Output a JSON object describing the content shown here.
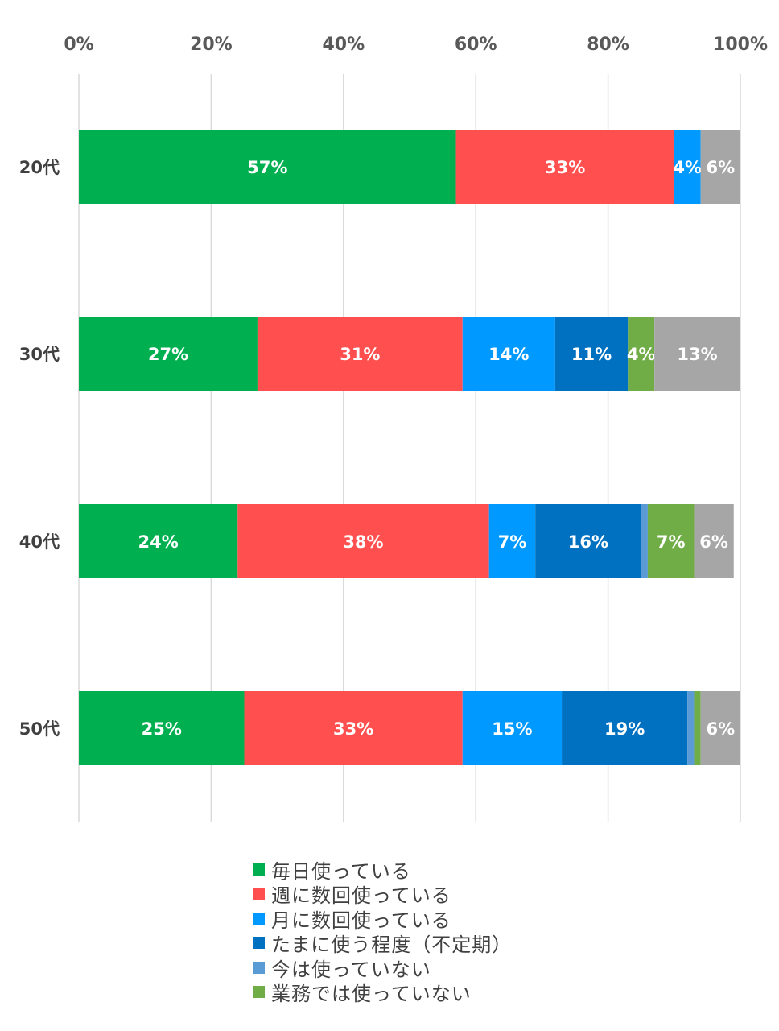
{
  "chart_data": {
    "type": "bar",
    "orientation": "horizontal",
    "stacked": true,
    "categories": [
      "20代",
      "30代",
      "40代",
      "50代"
    ],
    "x_ticks": [
      "0%",
      "20%",
      "40%",
      "60%",
      "80%",
      "100%"
    ],
    "xlim": [
      0,
      100
    ],
    "grid": true,
    "legend_position": "bottom",
    "series": [
      {
        "name": "毎日使っている",
        "color": "#00B050",
        "values": [
          57,
          27,
          24,
          25
        ],
        "labels": [
          "57%",
          "27%",
          "24%",
          "25%"
        ]
      },
      {
        "name": "週に数回使っている",
        "color": "#FF4F4F",
        "values": [
          33,
          31,
          38,
          33
        ],
        "labels": [
          "33%",
          "31%",
          "38%",
          "33%"
        ]
      },
      {
        "name": "月に数回使っている",
        "color": "#0099FF",
        "values": [
          4,
          14,
          7,
          15
        ],
        "labels": [
          "4%",
          "14%",
          "7%",
          "15%"
        ]
      },
      {
        "name": "たまに使う程度（不定期）",
        "color": "#0070C0",
        "values": [
          0,
          11,
          16,
          19
        ],
        "labels": [
          "",
          "11%",
          "16%",
          "19%"
        ]
      },
      {
        "name": "今は使っていない",
        "color": "#5B9BD5",
        "values": [
          0,
          0,
          1,
          1
        ],
        "labels": [
          "",
          "",
          "",
          ""
        ]
      },
      {
        "name": "業務では使っていない",
        "color": "#70AD47",
        "values": [
          0,
          4,
          7,
          1
        ],
        "labels": [
          "",
          "4%",
          "7%",
          ""
        ]
      },
      {
        "name": "",
        "color": "#A6A6A6",
        "values": [
          6,
          13,
          6,
          6
        ],
        "labels": [
          "6%",
          "13%",
          "6%",
          "6%"
        ]
      }
    ]
  }
}
